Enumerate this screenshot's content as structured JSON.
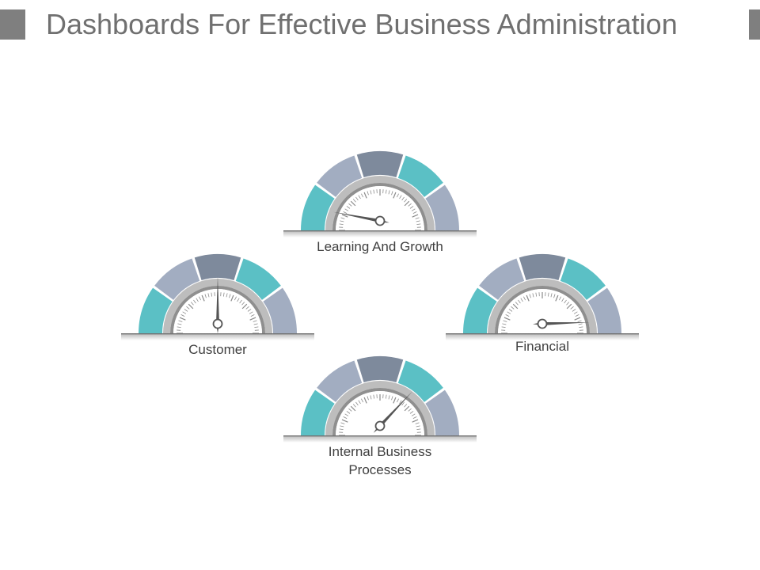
{
  "title": "Dashboards For Effective Business Administration",
  "colors": {
    "teal": "#5bc0c5",
    "slate_light": "#a2adc1",
    "slate_dark": "#7e8a9c",
    "needle": "#555555"
  },
  "gauges": [
    {
      "id": "learning",
      "label": "Learning And Growth",
      "needle_fraction": 0.06
    },
    {
      "id": "customer",
      "label": "Customer",
      "needle_fraction": 0.5
    },
    {
      "id": "financial",
      "label": "Financial",
      "needle_fraction": 0.99
    },
    {
      "id": "internal",
      "label": "Internal Business\nProcesses",
      "needle_fraction": 0.74
    }
  ]
}
